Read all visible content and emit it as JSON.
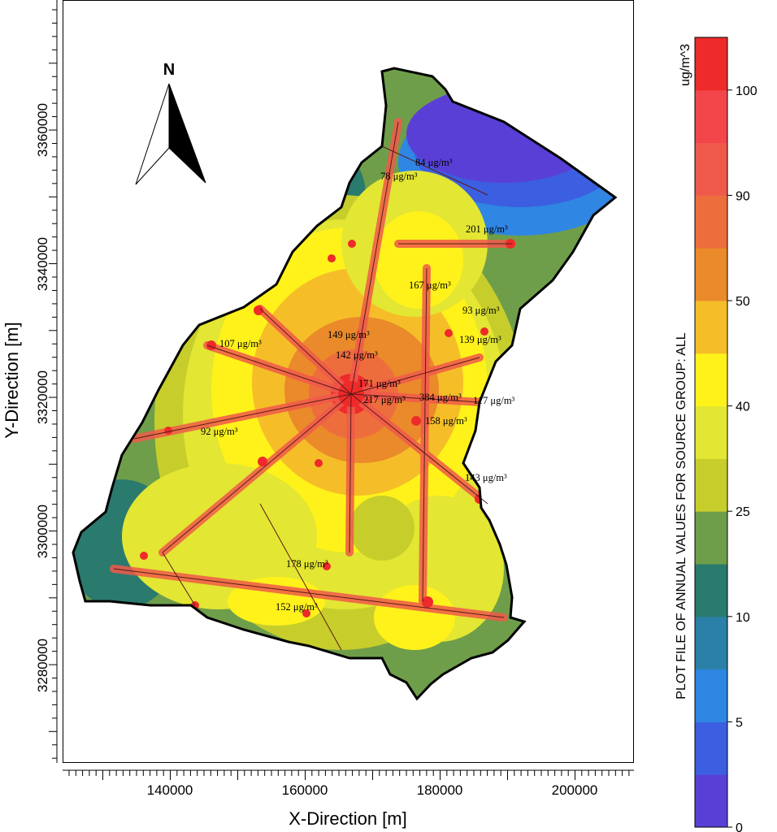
{
  "axes": {
    "x_label": "X-Direction [m]",
    "y_label": "Y-Direction [m]",
    "x_ticks": [
      "140000",
      "160000",
      "180000",
      "200000"
    ],
    "y_ticks": [
      "3360000",
      "3340000",
      "3320000",
      "3300000",
      "3280000"
    ]
  },
  "north_arrow": {
    "label": "N",
    "icon": "north-arrow-icon"
  },
  "legend": {
    "title": "PLOT FILE OF ANNUAL VALUES FOR SOURCE GROUP: ALL",
    "unit": "ug/m^3",
    "tick_labels": [
      "0",
      "5",
      "10",
      "25",
      "40",
      "50",
      "90",
      "100"
    ],
    "bands": [
      {
        "color": "#5a3fd6"
      },
      {
        "color": "#3b5fe0"
      },
      {
        "color": "#2f86e3"
      },
      {
        "color": "#2a80a8"
      },
      {
        "color": "#2a7a6e"
      },
      {
        "color": "#6f9e4a"
      },
      {
        "color": "#c7ce2c"
      },
      {
        "color": "#e3e632"
      },
      {
        "color": "#fff21a"
      },
      {
        "color": "#f5be28"
      },
      {
        "color": "#ea8a2a"
      },
      {
        "color": "#ee6d3d"
      },
      {
        "color": "#f05a4b"
      },
      {
        "color": "#f2464a"
      },
      {
        "color": "#ef2a2a"
      }
    ]
  },
  "annotations": [
    "84 μg/m³",
    "78 μg/m³",
    "201 μg/m³",
    "167 μg/m³",
    "93 μg/m³",
    "139 μg/m³",
    "149 μg/m³",
    "107 μg/m³",
    "142 μg/m³",
    "171 μg/m³",
    "217 μg/m³",
    "384 μg/m³",
    "117 μg/m³",
    "158 μg/m³",
    "92 μg/m³",
    "143 μg/m³",
    "178 μg/m³",
    "152 μg/m³"
  ]
}
